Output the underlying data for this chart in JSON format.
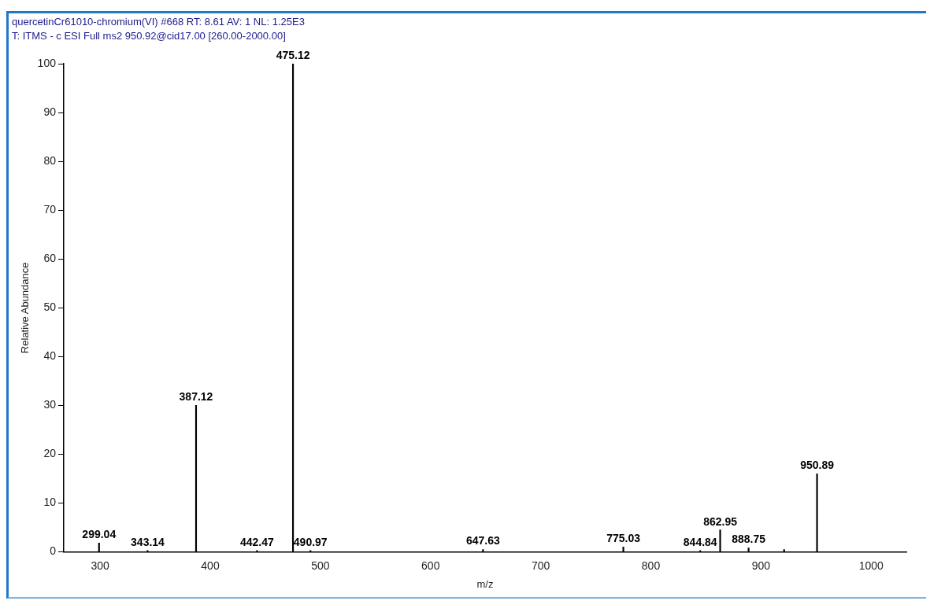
{
  "chart_data": {
    "type": "bar",
    "title": "quercetinCr61010-chromium(VI) #668   RT: 8.61   AV: 1   NL: 1.25E3",
    "subtitle": "T:  ITMS - c ESI Full ms2 950.92@cid17.00 [260.00-2000.00]",
    "xlabel": "m/z",
    "ylabel": "Relative Abundance",
    "x": [
      299.04,
      343.14,
      387.12,
      442.47,
      475.12,
      490.97,
      647.63,
      775.03,
      844.84,
      862.95,
      888.75,
      921,
      950.89
    ],
    "values": [
      1.8,
      0.3,
      30,
      0.3,
      100,
      0.3,
      0.5,
      1,
      0.3,
      4.5,
      0.8,
      0.5,
      16
    ],
    "color": "#000000",
    "xlim": [
      267,
      1032
    ],
    "xticks": [
      300,
      400,
      500,
      600,
      700,
      800,
      900,
      1000
    ],
    "ylim": [
      0,
      100
    ],
    "yticks": [
      0,
      10,
      20,
      30,
      40,
      50,
      60,
      70,
      80,
      90,
      100
    ],
    "grid": false,
    "legend": false,
    "annotations": [
      {
        "text": "299.04",
        "x": 299.04,
        "y": 1.8
      },
      {
        "text": "343.14",
        "x": 343.14,
        "y": 0.3
      },
      {
        "text": "387.12",
        "x": 387.12,
        "y": 30
      },
      {
        "text": "442.47",
        "x": 442.47,
        "y": 0.3
      },
      {
        "text": "475.12",
        "x": 475.12,
        "y": 100
      },
      {
        "text": "490.97",
        "x": 490.97,
        "y": 0.3
      },
      {
        "text": "647.63",
        "x": 647.63,
        "y": 0.5
      },
      {
        "text": "775.03",
        "x": 775.03,
        "y": 1
      },
      {
        "text": "844.84",
        "x": 844.84,
        "y": 0.3
      },
      {
        "text": "862.95",
        "x": 862.95,
        "y": 4.5
      },
      {
        "text": "888.75",
        "x": 888.75,
        "y": 0.8
      },
      {
        "text": "950.89",
        "x": 950.89,
        "y": 16
      }
    ]
  }
}
